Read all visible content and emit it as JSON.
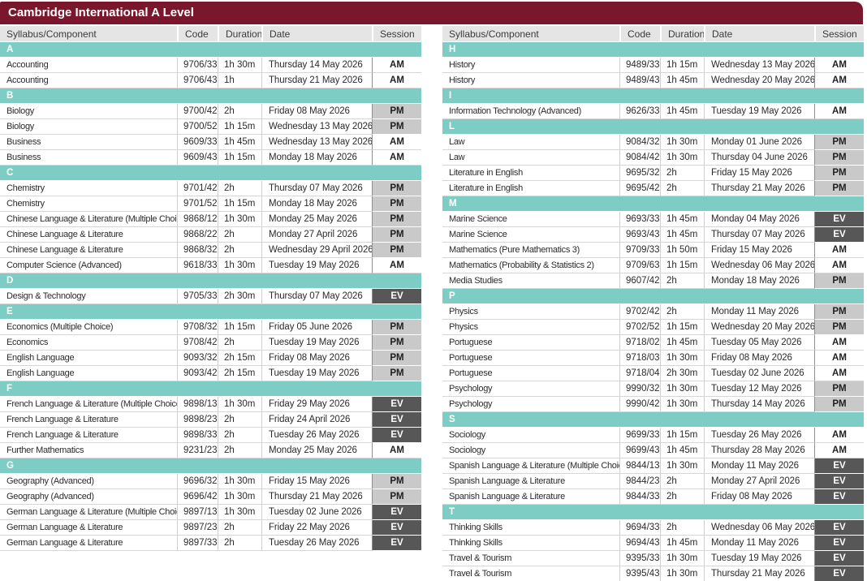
{
  "title": "Cambridge International A Level",
  "columns": [
    "Syllabus/Component",
    "Code",
    "Duration",
    "Date",
    "Session"
  ],
  "colors": {
    "header_bar": "#7B172D",
    "title_text": "#FFFFFF",
    "section_bar": "#7ECDC4",
    "column_header_bg": "#E5E5E5",
    "row_border": "#D6D6D6",
    "session_am_bg": "#FFFFFF",
    "session_pm_bg": "#C9C9C9",
    "session_ev_bg": "#575757",
    "session_ev_text": "#FFFFFF"
  },
  "tables": [
    {
      "side": "left",
      "sections": [
        {
          "letter": "A",
          "rows": [
            {
              "subject": "Accounting",
              "code": "9706/33",
              "duration": "1h 30m",
              "date": "Thursday 14 May 2026",
              "session": "AM"
            },
            {
              "subject": "Accounting",
              "code": "9706/43",
              "duration": "1h",
              "date": "Thursday 21 May 2026",
              "session": "AM"
            }
          ]
        },
        {
          "letter": "B",
          "rows": [
            {
              "subject": "Biology",
              "code": "9700/42",
              "duration": "2h",
              "date": "Friday 08 May 2026",
              "session": "PM"
            },
            {
              "subject": "Biology",
              "code": "9700/52",
              "duration": "1h 15m",
              "date": "Wednesday 13 May 2026",
              "session": "PM"
            },
            {
              "subject": "Business",
              "code": "9609/33",
              "duration": "1h 45m",
              "date": "Wednesday 13 May 2026",
              "session": "AM"
            },
            {
              "subject": "Business",
              "code": "9609/43",
              "duration": "1h 15m",
              "date": "Monday 18 May 2026",
              "session": "AM"
            }
          ]
        },
        {
          "letter": "C",
          "rows": [
            {
              "subject": "Chemistry",
              "code": "9701/42",
              "duration": "2h",
              "date": "Thursday 07 May 2026",
              "session": "PM"
            },
            {
              "subject": "Chemistry",
              "code": "9701/52",
              "duration": "1h 15m",
              "date": "Monday 18 May 2026",
              "session": "PM"
            },
            {
              "subject": "Chinese Language & Literature (Multiple Choice)",
              "code": "9868/12",
              "duration": "1h 30m",
              "date": "Monday 25 May 2026",
              "session": "PM"
            },
            {
              "subject": "Chinese Language & Literature",
              "code": "9868/22",
              "duration": "2h",
              "date": "Monday 27 April 2026",
              "session": "PM"
            },
            {
              "subject": "Chinese Language & Literature",
              "code": "9868/32",
              "duration": "2h",
              "date": "Wednesday 29 April 2026",
              "session": "PM"
            },
            {
              "subject": "Computer Science (Advanced)",
              "code": "9618/33",
              "duration": "1h 30m",
              "date": "Tuesday 19 May 2026",
              "session": "AM"
            }
          ]
        },
        {
          "letter": "D",
          "rows": [
            {
              "subject": "Design & Technology",
              "code": "9705/33",
              "duration": "2h 30m",
              "date": "Thursday 07 May 2026",
              "session": "EV"
            }
          ]
        },
        {
          "letter": "E",
          "rows": [
            {
              "subject": "Economics (Multiple Choice)",
              "code": "9708/32",
              "duration": "1h 15m",
              "date": "Friday 05 June 2026",
              "session": "PM"
            },
            {
              "subject": "Economics",
              "code": "9708/42",
              "duration": "2h",
              "date": "Tuesday 19 May 2026",
              "session": "PM"
            },
            {
              "subject": "English Language",
              "code": "9093/32",
              "duration": "2h 15m",
              "date": "Friday 08 May 2026",
              "session": "PM"
            },
            {
              "subject": "English Language",
              "code": "9093/42",
              "duration": "2h 15m",
              "date": "Tuesday 19 May 2026",
              "session": "PM"
            }
          ]
        },
        {
          "letter": "F",
          "rows": [
            {
              "subject": "French Language & Literature (Multiple Choice)",
              "code": "9898/13",
              "duration": "1h 30m",
              "date": "Friday 29 May 2026",
              "session": "EV"
            },
            {
              "subject": "French Language & Literature",
              "code": "9898/23",
              "duration": "2h",
              "date": "Friday 24 April 2026",
              "session": "EV"
            },
            {
              "subject": "French Language & Literature",
              "code": "9898/33",
              "duration": "2h",
              "date": "Tuesday 26 May 2026",
              "session": "EV"
            },
            {
              "subject": "Further Mathematics",
              "code": "9231/23",
              "duration": "2h",
              "date": "Monday 25 May 2026",
              "session": "AM"
            }
          ]
        },
        {
          "letter": "G",
          "rows": [
            {
              "subject": "Geography (Advanced)",
              "code": "9696/32",
              "duration": "1h 30m",
              "date": "Friday 15 May 2026",
              "session": "PM"
            },
            {
              "subject": "Geography (Advanced)",
              "code": "9696/42",
              "duration": "1h 30m",
              "date": "Thursday 21 May 2026",
              "session": "PM"
            },
            {
              "subject": "German Language & Literature (Multiple Choice)",
              "code": "9897/13",
              "duration": "1h 30m",
              "date": "Tuesday 02 June 2026",
              "session": "EV"
            },
            {
              "subject": "German Language & Literature",
              "code": "9897/23",
              "duration": "2h",
              "date": "Friday 22 May 2026",
              "session": "EV"
            },
            {
              "subject": "German Language & Literature",
              "code": "9897/33",
              "duration": "2h",
              "date": "Tuesday 26 May 2026",
              "session": "EV"
            }
          ]
        }
      ]
    },
    {
      "side": "right",
      "sections": [
        {
          "letter": "H",
          "rows": [
            {
              "subject": "History",
              "code": "9489/33",
              "duration": "1h 15m",
              "date": "Wednesday 13 May 2026",
              "session": "AM"
            },
            {
              "subject": "History",
              "code": "9489/43",
              "duration": "1h 45m",
              "date": "Wednesday 20 May 2026",
              "session": "AM"
            }
          ]
        },
        {
          "letter": "I",
          "rows": [
            {
              "subject": "Information Technology (Advanced)",
              "code": "9626/33",
              "duration": "1h 45m",
              "date": "Tuesday 19 May 2026",
              "session": "AM"
            }
          ]
        },
        {
          "letter": "L",
          "rows": [
            {
              "subject": "Law",
              "code": "9084/32",
              "duration": "1h 30m",
              "date": "Monday 01 June 2026",
              "session": "PM"
            },
            {
              "subject": "Law",
              "code": "9084/42",
              "duration": "1h 30m",
              "date": "Thursday 04 June 2026",
              "session": "PM"
            },
            {
              "subject": "Literature in English",
              "code": "9695/32",
              "duration": "2h",
              "date": "Friday 15 May 2026",
              "session": "PM"
            },
            {
              "subject": "Literature in English",
              "code": "9695/42",
              "duration": "2h",
              "date": "Thursday 21 May 2026",
              "session": "PM"
            }
          ]
        },
        {
          "letter": "M",
          "rows": [
            {
              "subject": "Marine Science",
              "code": "9693/33",
              "duration": "1h 45m",
              "date": "Monday 04 May 2026",
              "session": "EV"
            },
            {
              "subject": "Marine Science",
              "code": "9693/43",
              "duration": "1h 45m",
              "date": "Thursday 07 May 2026",
              "session": "EV"
            },
            {
              "subject": "Mathematics (Pure Mathematics 3)",
              "code": "9709/33",
              "duration": "1h 50m",
              "date": "Friday 15 May 2026",
              "session": "AM"
            },
            {
              "subject": "Mathematics (Probability & Statistics 2)",
              "code": "9709/63",
              "duration": "1h 15m",
              "date": "Wednesday 06 May 2026",
              "session": "AM"
            },
            {
              "subject": "Media Studies",
              "code": "9607/42",
              "duration": "2h",
              "date": "Monday 18 May 2026",
              "session": "PM"
            }
          ]
        },
        {
          "letter": "P",
          "rows": [
            {
              "subject": "Physics",
              "code": "9702/42",
              "duration": "2h",
              "date": "Monday 11 May 2026",
              "session": "PM"
            },
            {
              "subject": "Physics",
              "code": "9702/52",
              "duration": "1h 15m",
              "date": "Wednesday 20 May 2026",
              "session": "PM"
            },
            {
              "subject": "Portuguese",
              "code": "9718/02",
              "duration": "1h 45m",
              "date": "Tuesday 05 May 2026",
              "session": "AM"
            },
            {
              "subject": "Portuguese",
              "code": "9718/03",
              "duration": "1h 30m",
              "date": "Friday 08 May 2026",
              "session": "AM"
            },
            {
              "subject": "Portuguese",
              "code": "9718/04",
              "duration": "2h 30m",
              "date": "Tuesday 02 June 2026",
              "session": "AM"
            },
            {
              "subject": "Psychology",
              "code": "9990/32",
              "duration": "1h 30m",
              "date": "Tuesday 12 May 2026",
              "session": "PM"
            },
            {
              "subject": "Psychology",
              "code": "9990/42",
              "duration": "1h 30m",
              "date": "Thursday 14 May 2026",
              "session": "PM"
            }
          ]
        },
        {
          "letter": "S",
          "rows": [
            {
              "subject": "Sociology",
              "code": "9699/33",
              "duration": "1h 15m",
              "date": "Tuesday 26 May 2026",
              "session": "AM"
            },
            {
              "subject": "Sociology",
              "code": "9699/43",
              "duration": "1h 45m",
              "date": "Thursday 28 May 2026",
              "session": "AM"
            },
            {
              "subject": "Spanish Language & Literature (Multiple Choice)",
              "code": "9844/13",
              "duration": "1h 30m",
              "date": "Monday 11 May 2026",
              "session": "EV"
            },
            {
              "subject": "Spanish Language & Literature",
              "code": "9844/23",
              "duration": "2h",
              "date": "Monday 27 April 2026",
              "session": "EV"
            },
            {
              "subject": "Spanish Language & Literature",
              "code": "9844/33",
              "duration": "2h",
              "date": "Friday 08 May 2026",
              "session": "EV"
            }
          ]
        },
        {
          "letter": "T",
          "rows": [
            {
              "subject": "Thinking Skills",
              "code": "9694/33",
              "duration": "2h",
              "date": "Wednesday 06 May 2026",
              "session": "EV"
            },
            {
              "subject": "Thinking Skills",
              "code": "9694/43",
              "duration": "1h 45m",
              "date": "Monday 11 May 2026",
              "session": "EV"
            },
            {
              "subject": "Travel & Tourism",
              "code": "9395/33",
              "duration": "1h 30m",
              "date": "Tuesday 19 May 2026",
              "session": "EV"
            },
            {
              "subject": "Travel & Tourism",
              "code": "9395/43",
              "duration": "1h 30m",
              "date": "Thursday 21 May 2026",
              "session": "EV"
            }
          ]
        }
      ]
    }
  ]
}
